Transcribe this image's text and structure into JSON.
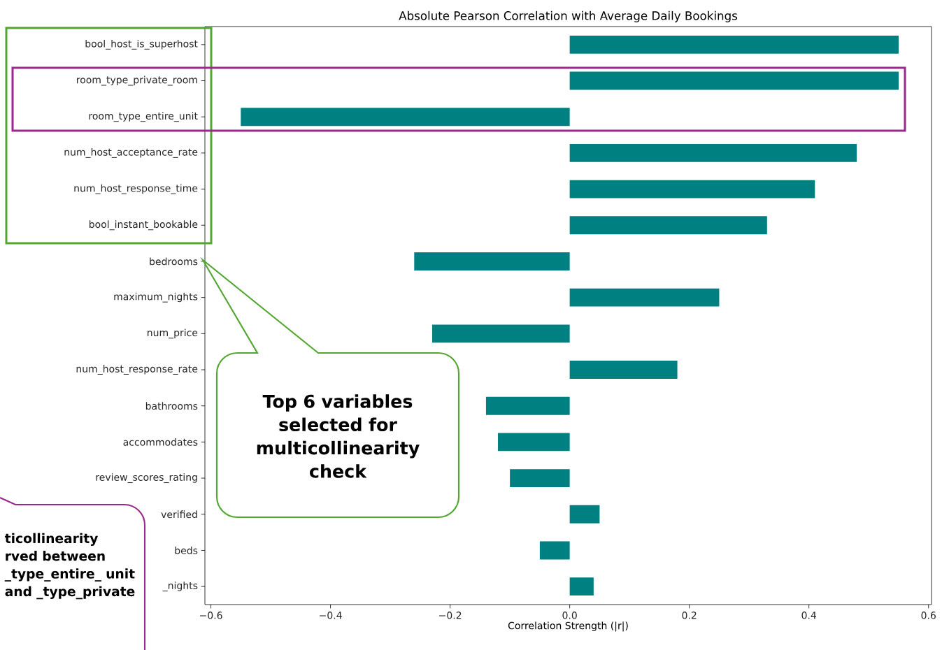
{
  "chart_data": {
    "type": "bar",
    "orientation": "horizontal",
    "title": "Absolute Pearson Correlation with Average Daily Bookings",
    "xlabel": "Correlation Strength (|r|)",
    "categories": [
      "bool_host_is_superhost",
      "room_type_private_room",
      "room_type_entire_unit",
      "num_host_acceptance_rate",
      "num_host_response_time",
      "bool_instant_bookable",
      "bedrooms",
      "maximum_nights",
      "num_price",
      "num_host_response_rate",
      "bathrooms",
      "accommodates",
      "review_scores_rating",
      "verified",
      "beds",
      "_nights"
    ],
    "values": [
      0.55,
      0.55,
      -0.55,
      0.48,
      0.41,
      0.33,
      -0.26,
      0.25,
      -0.23,
      0.18,
      -0.14,
      -0.12,
      -0.1,
      0.05,
      -0.05,
      0.04
    ],
    "color": "#008080",
    "xlim": [
      -0.61,
      0.605
    ],
    "xticks": [
      {
        "value": -0.6,
        "label": "−0.6"
      },
      {
        "value": -0.4,
        "label": "−0.4"
      },
      {
        "value": -0.2,
        "label": "−0.2"
      },
      {
        "value": 0.0,
        "label": "0.0"
      },
      {
        "value": 0.2,
        "label": "0.2"
      },
      {
        "value": 0.4,
        "label": "0.4"
      },
      {
        "value": 0.6,
        "label": "0.6"
      }
    ],
    "annotations": [
      "Top 6 variables selected for multicollinearity check",
      "ticollinearity rved between _type_entire_ unit and _type_private"
    ]
  }
}
